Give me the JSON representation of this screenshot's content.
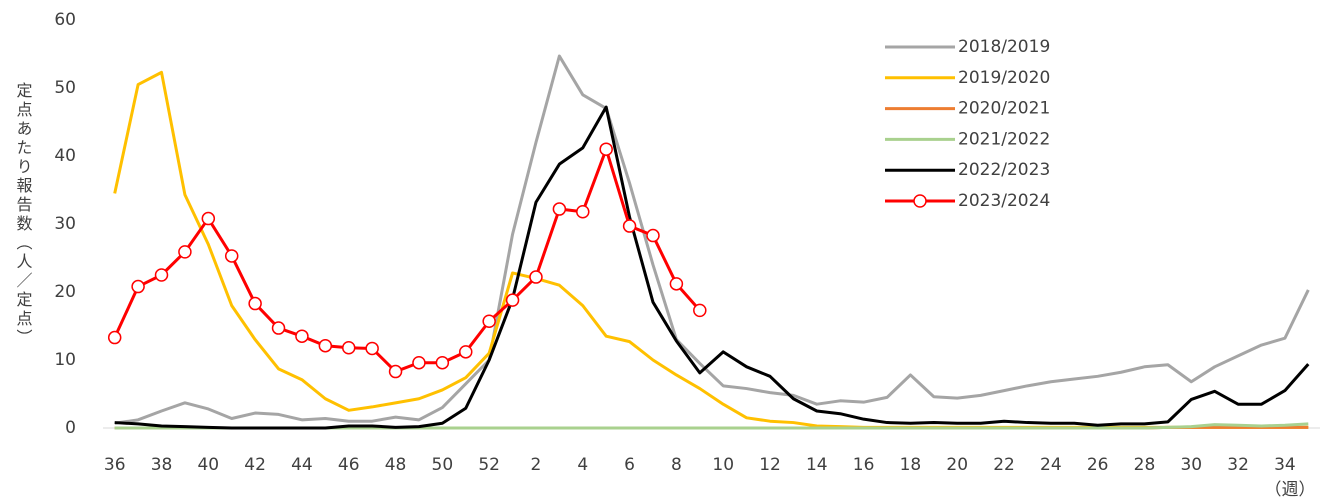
{
  "chart_data": {
    "type": "line",
    "y_label": "定点あたり報告数（人／定点）",
    "x_label": "（週）",
    "categories": [
      "36",
      null,
      "38",
      null,
      "40",
      null,
      "42",
      null,
      "44",
      null,
      "46",
      null,
      "48",
      null,
      "50",
      null,
      "52",
      null,
      "2",
      null,
      "4",
      null,
      "6",
      null,
      "8",
      null,
      "10",
      null,
      "12",
      null,
      "14",
      null,
      "16",
      null,
      "18",
      null,
      "20",
      null,
      "22",
      null,
      "24",
      null,
      "26",
      null,
      "28",
      null,
      "30",
      null,
      "32",
      null,
      "34",
      null
    ],
    "ylim": [
      0,
      60
    ],
    "yticks": [
      0,
      10,
      20,
      30,
      40,
      50,
      60
    ],
    "grid": false,
    "legend": "upper right",
    "series": [
      {
        "name": "2018/2019",
        "color": "#a5a5a5",
        "marker": false,
        "values": [
          0.7,
          1.2,
          2.5,
          3.7,
          2.8,
          1.4,
          2.2,
          2.0,
          1.2,
          1.4,
          1.0,
          1.0,
          1.6,
          1.2,
          3.0,
          6.5,
          10,
          28.5,
          42,
          54.7,
          49,
          47,
          36,
          24,
          13,
          9.5,
          6.2,
          5.8,
          5.2,
          4.8,
          3.5,
          4.0,
          3.8,
          4.5,
          7.8,
          4.6,
          4.4,
          4.8,
          5.5,
          6.2,
          6.8,
          7.2,
          7.6,
          8.2,
          9.0,
          9.3,
          6.8,
          9.0,
          10.6,
          12.2,
          13.2,
          20.3
        ]
      },
      {
        "name": "2019/2020",
        "color": "#ffc000",
        "marker": false,
        "values": [
          34.5,
          50.5,
          52.3,
          34.3,
          27,
          18,
          13,
          8.7,
          7.1,
          4.3,
          2.6,
          3.1,
          3.7,
          4.3,
          5.6,
          7.4,
          11,
          22.8,
          22,
          21,
          18,
          13.5,
          12.7,
          10,
          7.8,
          5.8,
          3.5,
          1.5,
          1.0,
          0.8,
          0.3,
          0.2,
          0.1,
          0.1,
          0.1,
          0.1,
          0.1,
          0.1,
          0.1,
          0.1,
          0.1,
          0.1,
          0.1,
          0.1,
          0.1,
          0.1,
          0.1,
          0.1,
          0.1,
          0.1,
          0.1,
          0.1
        ]
      },
      {
        "name": "2020/2021",
        "color": "#ed7d31",
        "marker": false,
        "values": [
          0,
          0,
          0,
          0,
          0,
          0,
          0,
          0,
          0,
          0,
          0,
          0,
          0,
          0,
          0,
          0,
          0,
          0,
          0,
          0,
          0,
          0,
          0,
          0,
          0,
          0,
          0,
          0,
          0,
          0,
          0,
          0,
          0,
          0,
          0,
          0,
          0,
          0,
          0,
          0,
          0,
          0,
          0,
          0,
          0,
          0.1,
          0.1,
          0.1,
          0.1,
          0.1,
          0.1,
          0.1
        ]
      },
      {
        "name": "2021/2022",
        "color": "#a9d18e",
        "marker": false,
        "values": [
          0,
          0,
          0,
          0,
          0,
          0,
          0,
          0,
          0,
          0,
          0,
          0,
          0,
          0,
          0,
          0,
          0,
          0,
          0,
          0,
          0,
          0,
          0,
          0,
          0,
          0,
          0,
          0,
          0,
          0,
          0,
          0,
          0,
          0,
          0,
          0,
          0,
          0,
          0,
          0,
          0,
          0,
          0,
          0,
          0,
          0.1,
          0.2,
          0.5,
          0.4,
          0.3,
          0.4,
          0.6
        ]
      },
      {
        "name": "2022/2023",
        "color": "#000000",
        "marker": false,
        "values": [
          0.8,
          0.6,
          0.3,
          0.2,
          0.1,
          0,
          0,
          0,
          0,
          0,
          0.3,
          0.3,
          0.1,
          0.2,
          0.7,
          2.9,
          10,
          19,
          33.2,
          38.8,
          41.2,
          47.2,
          31,
          18.5,
          12.8,
          8.1,
          11.2,
          9.0,
          7.6,
          4.3,
          2.5,
          2.1,
          1.3,
          0.8,
          0.7,
          0.8,
          0.7,
          0.7,
          1.0,
          0.8,
          0.7,
          0.7,
          0.4,
          0.6,
          0.6,
          0.9,
          4.2,
          5.4,
          3.5,
          3.5,
          5.5,
          9.4
        ]
      },
      {
        "name": "2023/2024",
        "color": "#ff0000",
        "marker": true,
        "values": [
          13.3,
          20.8,
          22.5,
          25.9,
          30.8,
          25.3,
          18.3,
          14.7,
          13.5,
          12.1,
          11.8,
          11.7,
          8.3,
          9.6,
          9.6,
          11.2,
          15.7,
          18.8,
          22.2,
          32.2,
          31.8,
          41,
          29.7,
          28.3,
          21.2,
          17.3,
          null,
          null,
          null,
          null,
          null,
          null,
          null,
          null,
          null,
          null,
          null,
          null,
          null,
          null,
          null,
          null,
          null,
          null,
          null,
          null,
          null,
          null,
          null,
          null,
          null,
          null
        ]
      }
    ]
  }
}
